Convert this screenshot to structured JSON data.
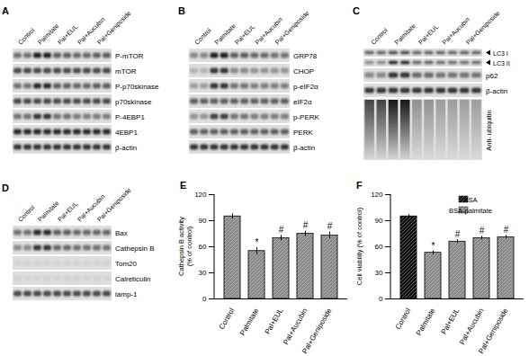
{
  "lanes": [
    "Control",
    "Palmitate",
    "Pal+EUL",
    "Pal+Aucubin",
    "Pal+Geniposide"
  ],
  "blots": [
    {
      "title": "A",
      "rows": [
        {
          "label": "P-mTOR",
          "intensity": [
            0.5,
            0.9,
            0.6,
            0.55,
            0.6
          ]
        },
        {
          "label": "mTOR",
          "intensity": [
            0.7,
            0.7,
            0.7,
            0.7,
            0.7
          ]
        },
        {
          "label": "P-p70skinase",
          "intensity": [
            0.5,
            0.85,
            0.6,
            0.55,
            0.6
          ]
        },
        {
          "label": "p70skinase",
          "intensity": [
            0.7,
            0.7,
            0.7,
            0.7,
            0.7
          ]
        },
        {
          "label": "P-4EBP1",
          "intensity": [
            0.5,
            0.8,
            0.5,
            0.45,
            0.45
          ]
        },
        {
          "label": "4EBP1",
          "intensity": [
            0.85,
            0.85,
            0.85,
            0.85,
            0.85
          ]
        },
        {
          "label": "β-actin",
          "intensity": [
            0.8,
            0.8,
            0.8,
            0.8,
            0.8
          ]
        }
      ]
    },
    {
      "title": "B",
      "rows": [
        {
          "label": "GRP78",
          "intensity": [
            0.4,
            0.9,
            0.6,
            0.55,
            0.5
          ]
        },
        {
          "label": "CHOP",
          "intensity": [
            0.2,
            0.8,
            0.4,
            0.35,
            0.35
          ]
        },
        {
          "label": "p-eIF2α",
          "intensity": [
            0.3,
            0.8,
            0.5,
            0.45,
            0.45
          ]
        },
        {
          "label": "eIF2α",
          "intensity": [
            0.6,
            0.6,
            0.6,
            0.6,
            0.6
          ]
        },
        {
          "label": "p-PERK",
          "intensity": [
            0.35,
            0.75,
            0.5,
            0.45,
            0.45
          ]
        },
        {
          "label": "PERK",
          "intensity": [
            0.6,
            0.6,
            0.6,
            0.6,
            0.6
          ]
        },
        {
          "label": "β-actin",
          "intensity": [
            0.8,
            0.8,
            0.8,
            0.8,
            0.8
          ]
        }
      ]
    },
    {
      "title": "C",
      "rows": [
        {
          "label": "LC3 I",
          "marker": "arrow",
          "intensity": [
            0.6,
            0.7,
            0.6,
            0.6,
            0.6
          ]
        },
        {
          "label": "LC3 II",
          "marker": "arrow",
          "intensity": [
            0.4,
            0.9,
            0.6,
            0.55,
            0.55
          ]
        },
        {
          "label": "p62",
          "intensity": [
            0.4,
            0.8,
            0.55,
            0.5,
            0.5
          ]
        },
        {
          "label": "β-actin",
          "intensity": [
            0.8,
            0.8,
            0.8,
            0.8,
            0.8
          ]
        },
        {
          "label": "Anti- ubiquitin",
          "type": "smear",
          "intensity": [
            0.7,
            0.9,
            0.35,
            0.3,
            0.3
          ]
        }
      ]
    },
    {
      "title": "D",
      "rows": [
        {
          "label": "Bax",
          "intensity": [
            0.5,
            0.85,
            0.6,
            0.55,
            0.55
          ]
        },
        {
          "label": "Cathepsin B",
          "intensity": [
            0.4,
            0.8,
            0.55,
            0.5,
            0.5
          ]
        },
        {
          "label": "Tom20",
          "intensity": [
            0.05,
            0.05,
            0.05,
            0.05,
            0.05
          ]
        },
        {
          "label": "Calreticulin",
          "intensity": [
            0.05,
            0.05,
            0.05,
            0.05,
            0.05
          ]
        },
        {
          "label": "lamp-1",
          "intensity": [
            0.7,
            0.7,
            0.7,
            0.7,
            0.7
          ]
        }
      ]
    }
  ],
  "chart_data": [
    {
      "type": "bar",
      "title": "E",
      "categories": [
        "Control",
        "Palmitate",
        "Pal+EUL",
        "Pal+Aucubin",
        "Pal+Geniposide"
      ],
      "values": [
        95,
        55,
        70,
        75,
        73
      ],
      "errors": [
        3,
        4,
        3,
        3,
        4
      ],
      "annotations": [
        null,
        "*",
        "#",
        "#",
        "#"
      ],
      "color": "#8a8a8a",
      "ylabel": [
        "Cathepsin B activity",
        "(% of control)"
      ],
      "ylim": [
        0,
        120
      ],
      "yticks": [
        0,
        30,
        60,
        90,
        120
      ]
    },
    {
      "type": "bar",
      "title": "F",
      "categories": [
        "Control",
        "Palmitate",
        "Pal+EUL",
        "Pal+Aucubin",
        "Pal+Geniposide"
      ],
      "series": [
        {
          "name": "BSA",
          "color": "#111111",
          "values": [
            95,
            null,
            null,
            null,
            null
          ],
          "errors": [
            2,
            null,
            null,
            null,
            null
          ]
        },
        {
          "name": "BSA-palmitate",
          "color": "#8a8a8a",
          "values": [
            null,
            53,
            66,
            70,
            71
          ],
          "errors": [
            null,
            2,
            2,
            2,
            2
          ]
        }
      ],
      "annotations": [
        null,
        "*",
        "#",
        "#",
        "#"
      ],
      "legend": "top-right",
      "ylabel": "Cell viability (% of control)",
      "ylim": [
        0,
        120
      ],
      "yticks": [
        0,
        30,
        60,
        90,
        120
      ]
    }
  ]
}
